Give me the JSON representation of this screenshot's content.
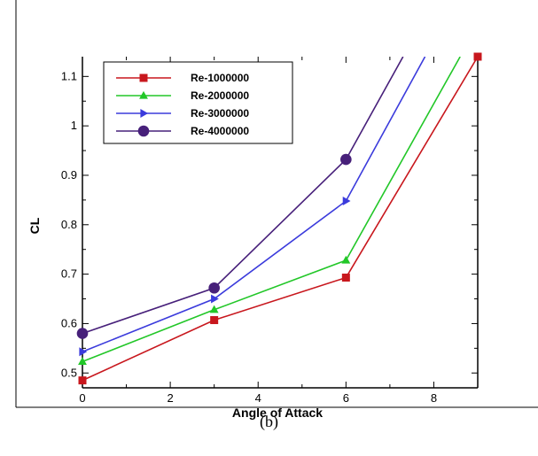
{
  "caption": "(b)",
  "chart_data": {
    "type": "line",
    "title": "",
    "xlabel": "Angle of Attack",
    "ylabel": "CL",
    "xlim": [
      0,
      9
    ],
    "ylim": [
      0.47,
      1.14
    ],
    "xticks": [
      0,
      2,
      4,
      6,
      8
    ],
    "yticks": [
      0.5,
      0.6,
      0.7,
      0.8,
      0.9,
      1.0,
      1.1
    ],
    "ytick_labels": [
      "0.5",
      "0.6",
      "0.7",
      "0.8",
      "0.9",
      "1",
      "1.1"
    ],
    "grid": false,
    "legend_position": "top-left",
    "series": [
      {
        "name": "Re-1000000",
        "color": "#c8171d",
        "marker": "square",
        "x": [
          0,
          3,
          6,
          9
        ],
        "y": [
          0.485,
          0.607,
          0.693,
          1.14
        ]
      },
      {
        "name": "Re-2000000",
        "color": "#22c728",
        "marker": "triangle",
        "x": [
          0,
          3,
          6,
          8.6
        ],
        "y": [
          0.523,
          0.628,
          0.728,
          1.14
        ]
      },
      {
        "name": "Re-3000000",
        "color": "#3b3bdc",
        "marker": "triangle-right",
        "x": [
          0,
          3,
          6,
          7.8
        ],
        "y": [
          0.543,
          0.65,
          0.848,
          1.14
        ]
      },
      {
        "name": "Re-4000000",
        "color": "#47207a",
        "marker": "circle",
        "x": [
          0,
          3,
          6,
          7.3
        ],
        "y": [
          0.58,
          0.672,
          0.932,
          1.14
        ]
      }
    ]
  }
}
